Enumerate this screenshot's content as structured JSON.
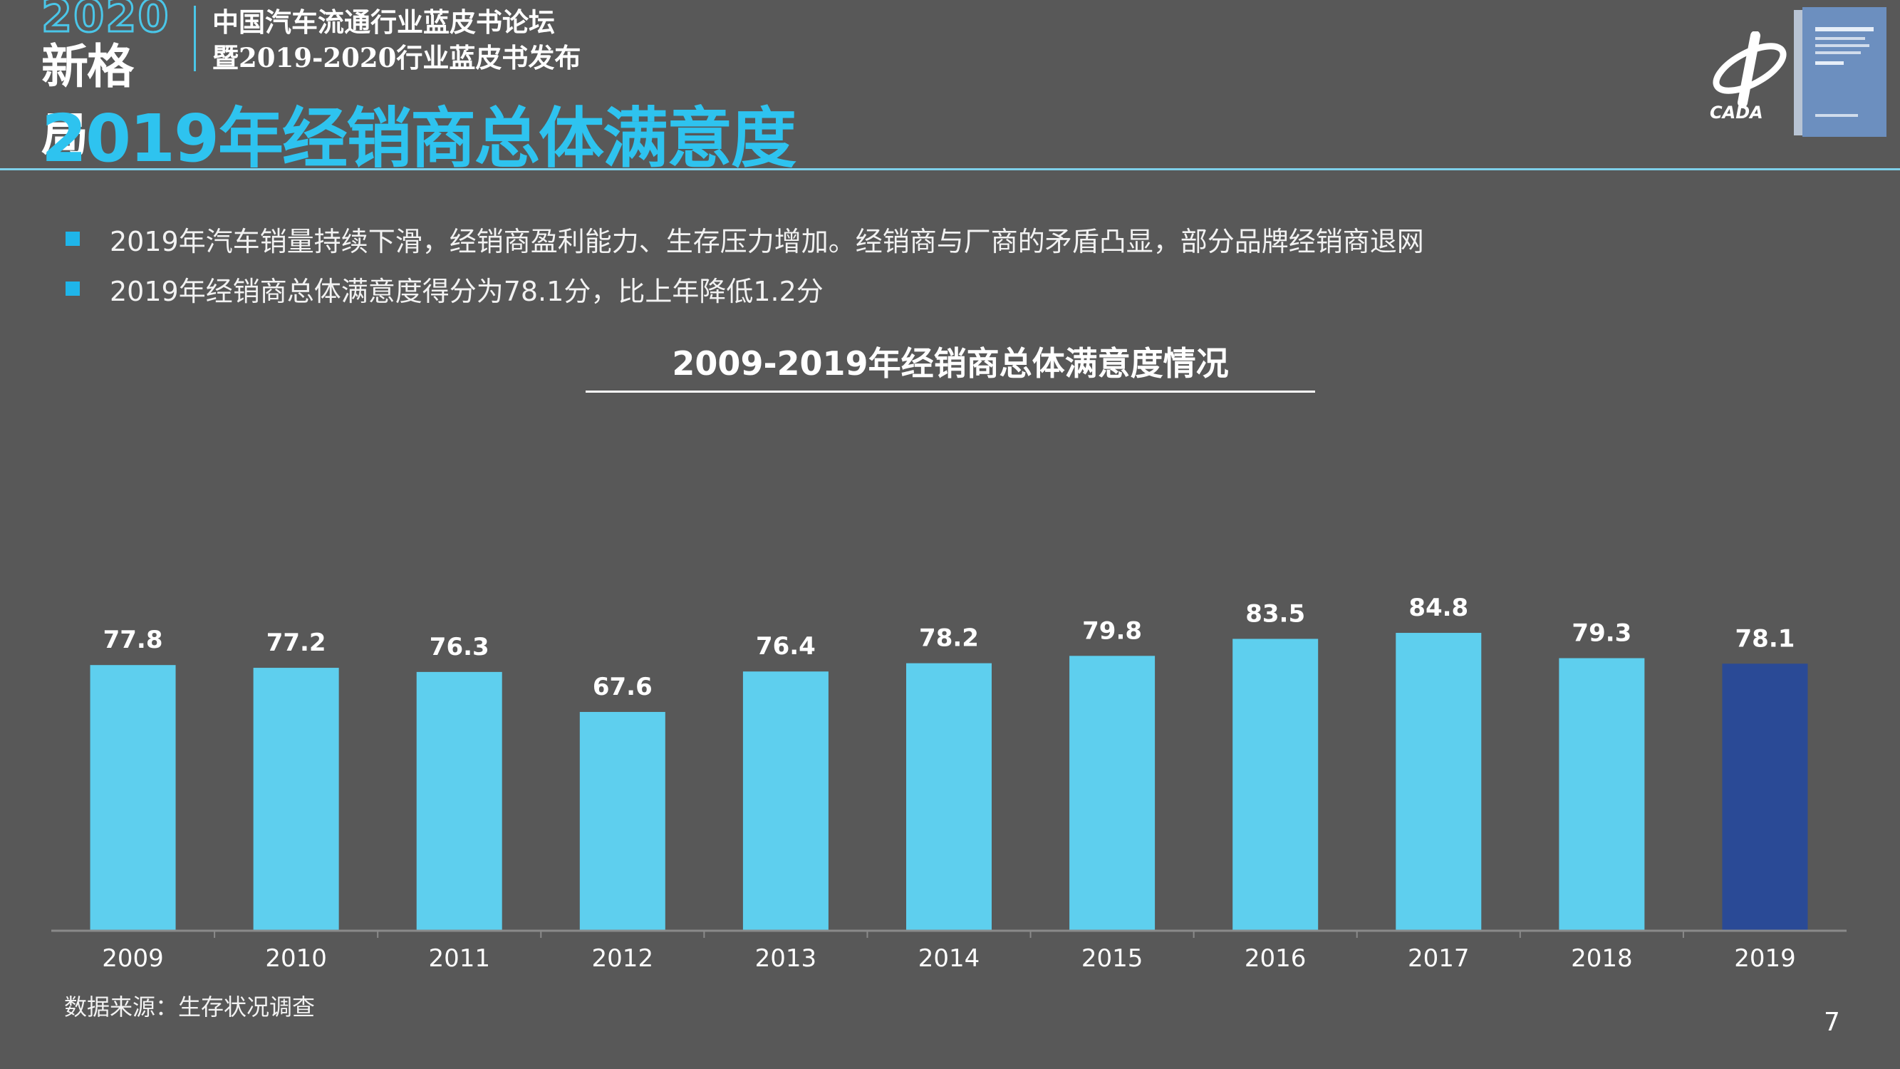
{
  "header": {
    "logo_year": "2020",
    "logo_text": "新格局",
    "forum_line1": "中国汽车流通行业蓝皮书论坛",
    "forum_line2": "暨2019-2020行业蓝皮书发布",
    "page_title": "2019年经销商总体满意度",
    "cada_mark": "CADA"
  },
  "bullets": [
    "2019年汽车销量持续下滑，经销商盈利能力、生存压力增加。经销商与厂商的矛盾凸显，部分品牌经销商退网",
    "2019年经销商总体满意度得分为78.1分，比上年降低1.2分"
  ],
  "colors": {
    "background": "#585858",
    "accent": "#2ec3ef",
    "bar": "#5ecfee",
    "bar_highlight": "#2a4a96",
    "bullet": "#1fb5e9"
  },
  "chart_data": {
    "type": "bar",
    "title": "2009-2019年经销商总体满意度情况",
    "categories": [
      "2009",
      "2010",
      "2011",
      "2012",
      "2013",
      "2014",
      "2015",
      "2016",
      "2017",
      "2018",
      "2019"
    ],
    "values": [
      77.8,
      77.2,
      76.3,
      67.6,
      76.4,
      78.2,
      79.8,
      83.5,
      84.8,
      79.3,
      78.1
    ],
    "highlight_index": 10,
    "ylim": [
      20,
      90
    ],
    "xlabel": "",
    "ylabel": "",
    "grid": false,
    "legend": "none"
  },
  "footer": {
    "source": "数据来源：生存状况调查",
    "page_number": "7"
  }
}
